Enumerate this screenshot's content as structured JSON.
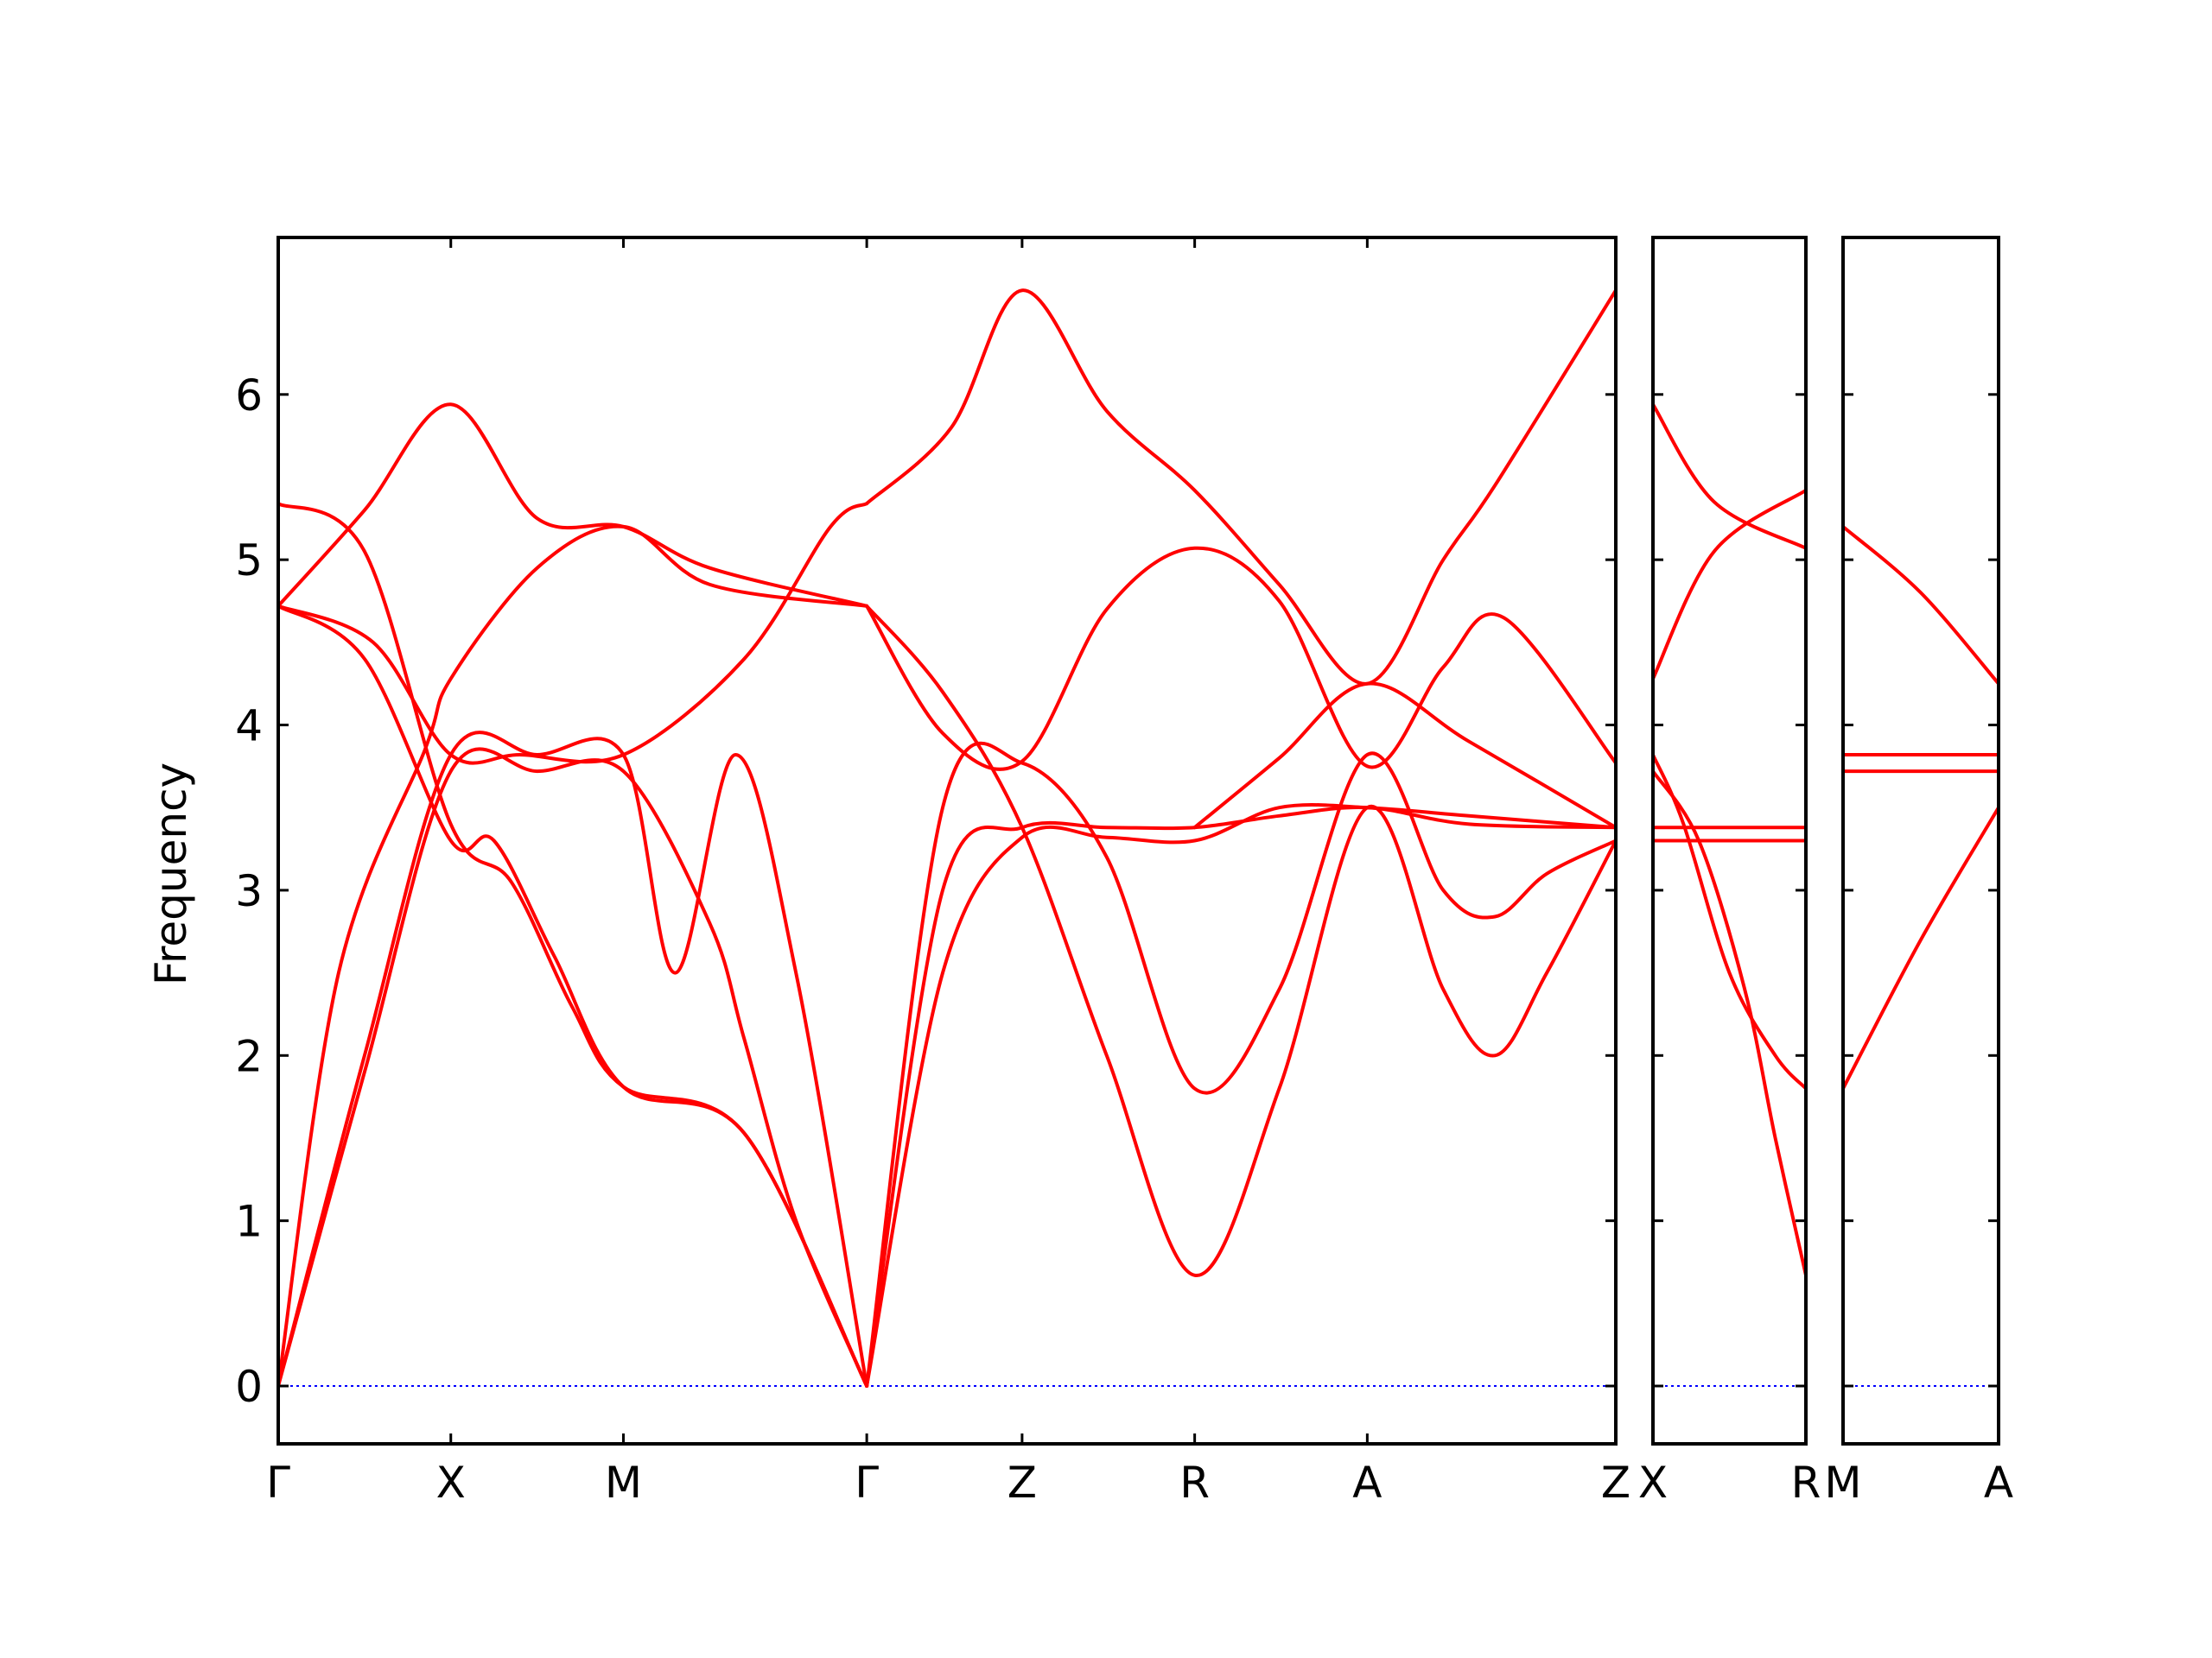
{
  "chart_data": {
    "type": "line",
    "ylabel": "Frequency",
    "ylim": [
      -0.35,
      6.95
    ],
    "yticks": [
      0,
      1,
      2,
      3,
      4,
      5,
      6
    ],
    "grid": false,
    "colors": {
      "bands": "#ff0000",
      "zero_line": "#0000ff"
    },
    "panels": [
      {
        "path": [
          "Γ",
          "X",
          "M",
          "Γ",
          "Z",
          "R",
          "A",
          "Z"
        ],
        "xlim": [
          0,
          7.75
        ],
        "xticks": [
          0,
          1,
          2,
          3.41,
          4.31,
          5.31,
          6.31,
          7.75
        ],
        "series": [
          {
            "x": [
              0,
              0.5,
              1,
              1.35,
              1.7,
              2,
              2.7,
              3.41
            ],
            "y": [
              5.34,
              5.05,
              3.4,
              3.05,
              2.3,
              1.81,
              1.53,
              0
            ]
          },
          {
            "x": [
              0,
              0.5,
              1,
              1.25,
              1.6,
              2,
              2.7,
              3.41
            ],
            "y": [
              4.72,
              4.4,
              3.3,
              3.3,
              2.6,
              1.81,
              1.53,
              0
            ]
          },
          {
            "x": [
              0,
              0.35,
              0.85,
              1,
              1.5,
              2,
              2.5,
              3.41
            ],
            "y": [
              0,
              2.5,
              3.85,
              4.28,
              4.95,
              5.2,
              4.85,
              4.72
            ]
          },
          {
            "x": [
              0,
              0.5,
              1,
              1.5,
              2,
              2.5,
              2.7,
              3.0,
              3.41
            ],
            "y": [
              0,
              1.9,
              3.72,
              3.72,
              3.72,
              2.8,
              2.1,
              1.0,
              0
            ]
          },
          {
            "x": [
              0,
              0.5,
              1,
              1.5,
              2,
              2.3,
              2.65,
              3.0,
              3.41
            ],
            "y": [
              0,
              2.0,
              3.82,
              3.82,
              3.82,
              2.5,
              3.82,
              2.5,
              0
            ]
          },
          {
            "x": [
              0,
              0.5,
              1,
              1.5,
              2,
              2.5,
              3.41
            ],
            "y": [
              4.72,
              5.3,
              5.94,
              5.25,
              5.2,
              4.95,
              4.72
            ]
          },
          {
            "x": [
              0,
              0.55,
              1,
              1.4,
              2,
              2.7,
              3.2,
              3.41
            ],
            "y": [
              4.72,
              4.5,
              3.82,
              3.82,
              3.82,
              4.4,
              5.2,
              5.34
            ]
          },
          {
            "x": [
              3.41,
              3.85,
              4.31,
              4.8,
              5.31,
              5.8,
              6.31,
              6.9,
              7.75
            ],
            "y": [
              0,
              2.5,
              3.32,
              3.32,
              3.3,
              3.5,
              3.5,
              3.45,
              3.38
            ]
          },
          {
            "x": [
              3.41,
              3.85,
              4.31,
              4.8,
              5.31,
              5.8,
              6.31,
              6.9,
              7.75
            ],
            "y": [
              0,
              3.0,
              3.38,
              3.38,
              3.38,
              3.45,
              3.5,
              3.4,
              3.38
            ]
          },
          {
            "x": [
              3.41,
              3.85,
              4.31,
              4.8,
              5.31,
              5.8,
              6.31,
              6.75,
              7.05,
              7.35,
              7.75
            ],
            "y": [
              4.72,
              4.2,
              3.38,
              2.0,
              0.67,
              1.8,
              3.5,
              2.4,
              2.0,
              2.5,
              3.3
            ]
          },
          {
            "x": [
              3.41,
              3.85,
              4.31,
              4.8,
              5.31,
              5.8,
              6.31,
              6.75,
              7.05,
              7.35,
              7.75
            ],
            "y": [
              0,
              3.5,
              3.77,
              3.2,
              1.8,
              2.4,
              3.82,
              3.0,
              2.84,
              3.1,
              3.3
            ]
          },
          {
            "x": [
              3.41,
              3.9,
              4.31,
              4.8,
              5.31,
              5.8,
              6.31,
              6.75,
              7.05,
              7.75
            ],
            "y": [
              5.34,
              5.8,
              6.63,
              5.9,
              5.42,
              4.85,
              4.25,
              5.0,
              5.45,
              6.63
            ]
          },
          {
            "x": [
              3.41,
              3.85,
              4.31,
              4.8,
              5.31,
              5.8,
              6.31,
              6.75,
              7.1,
              7.75
            ],
            "y": [
              4.72,
              3.95,
              3.78,
              4.7,
              5.07,
              4.75,
              3.75,
              4.35,
              4.65,
              3.77
            ]
          },
          {
            "x": [
              5.31,
              5.8,
              6.31,
              6.9,
              7.75
            ],
            "y": [
              3.38,
              3.8,
              4.25,
              3.9,
              3.38
            ]
          }
        ]
      },
      {
        "path": [
          "X",
          "R"
        ],
        "xlim": [
          0,
          1
        ],
        "xticks": [
          0,
          1
        ],
        "series": [
          {
            "x": [
              0,
              0.4,
              1
            ],
            "y": [
              5.94,
              5.35,
              5.07
            ]
          },
          {
            "x": [
              0,
              0.4,
              1
            ],
            "y": [
              4.28,
              5.05,
              5.42
            ]
          },
          {
            "x": [
              0,
              1
            ],
            "y": [
              3.38,
              3.38
            ]
          },
          {
            "x": [
              0,
              1
            ],
            "y": [
              3.3,
              3.3
            ]
          },
          {
            "x": [
              0,
              0.2,
              0.5,
              0.8,
              1
            ],
            "y": [
              3.82,
              3.4,
              2.5,
              2.0,
              1.8
            ]
          },
          {
            "x": [
              0,
              0.3,
              0.6,
              0.8,
              1
            ],
            "y": [
              3.72,
              3.3,
              2.4,
              1.5,
              0.67
            ]
          }
        ]
      },
      {
        "path": [
          "M",
          "A"
        ],
        "xlim": [
          0,
          1
        ],
        "xticks": [
          0,
          1
        ],
        "series": [
          {
            "x": [
              0,
              0.5,
              1
            ],
            "y": [
              5.2,
              4.8,
              4.25
            ]
          },
          {
            "x": [
              0,
              1
            ],
            "y": [
              3.82,
              3.82
            ]
          },
          {
            "x": [
              0,
              1
            ],
            "y": [
              3.72,
              3.72
            ]
          },
          {
            "x": [
              0,
              0.5,
              1
            ],
            "y": [
              1.8,
              2.7,
              3.5
            ]
          }
        ]
      }
    ]
  }
}
